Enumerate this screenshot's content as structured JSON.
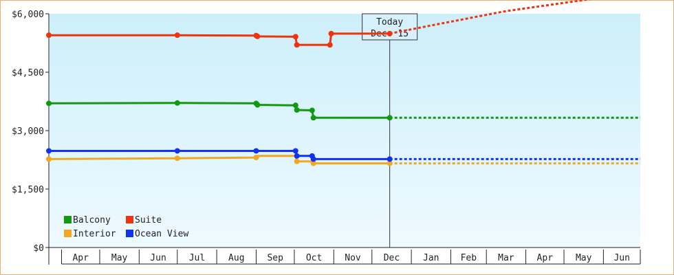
{
  "chart_data": {
    "type": "line",
    "title": "",
    "xlabel": "",
    "ylabel": "",
    "ylim": [
      0,
      6000
    ],
    "yticks": [
      0,
      1500,
      3000,
      4500,
      6000
    ],
    "ytick_labels": [
      "$0",
      "$1,500",
      "$3,000",
      "$4,500",
      "$6,000"
    ],
    "x_domain": [
      "2013-03-22",
      "2014-06-30"
    ],
    "months": [
      {
        "label": "Apr",
        "start": "2013-04-01",
        "end": "2013-05-01"
      },
      {
        "label": "May",
        "start": "2013-05-01",
        "end": "2013-06-01"
      },
      {
        "label": "Jun",
        "start": "2013-06-01",
        "end": "2013-07-01"
      },
      {
        "label": "Jul",
        "start": "2013-07-01",
        "end": "2013-08-01"
      },
      {
        "label": "Aug",
        "start": "2013-08-01",
        "end": "2013-09-01"
      },
      {
        "label": "Sep",
        "start": "2013-09-01",
        "end": "2013-10-01"
      },
      {
        "label": "Oct",
        "start": "2013-10-01",
        "end": "2013-11-01"
      },
      {
        "label": "Nov",
        "start": "2013-11-01",
        "end": "2013-12-01"
      },
      {
        "label": "Dec",
        "start": "2013-12-01",
        "end": "2014-01-01"
      },
      {
        "label": "Jan",
        "start": "2014-01-01",
        "end": "2014-02-01"
      },
      {
        "label": "Feb",
        "start": "2014-02-01",
        "end": "2014-03-01"
      },
      {
        "label": "Mar",
        "start": "2014-03-01",
        "end": "2014-04-01"
      },
      {
        "label": "Apr",
        "start": "2014-04-01",
        "end": "2014-05-01"
      },
      {
        "label": "May",
        "start": "2014-05-01",
        "end": "2014-06-01"
      },
      {
        "label": "Jun",
        "start": "2014-06-01",
        "end": "2014-06-30"
      }
    ],
    "today": {
      "date": "2013-12-15",
      "line1": "Today",
      "line2": "Dec. 15"
    },
    "legend_position": "bottom-left",
    "grid": false,
    "background": {
      "top": "#cdeffa",
      "bottom": "#eefaff"
    },
    "series": [
      {
        "name": "Balcony",
        "color": "#119911",
        "points": [
          [
            "2013-03-22",
            3700
          ],
          [
            "2013-07-01",
            3710
          ],
          [
            "2013-09-01",
            3700
          ],
          [
            "2013-09-02",
            3660
          ],
          [
            "2013-10-02",
            3650
          ],
          [
            "2013-10-03",
            3530
          ],
          [
            "2013-10-15",
            3520
          ],
          [
            "2013-10-16",
            3330
          ],
          [
            "2013-12-15",
            3330
          ]
        ],
        "markers": [
          [
            "2013-03-22",
            3700
          ],
          [
            "2013-07-01",
            3710
          ],
          [
            "2013-09-01",
            3700
          ],
          [
            "2013-09-02",
            3660
          ],
          [
            "2013-10-02",
            3650
          ],
          [
            "2013-10-03",
            3530
          ],
          [
            "2013-10-15",
            3520
          ],
          [
            "2013-10-16",
            3330
          ],
          [
            "2013-12-15",
            3330
          ]
        ],
        "projection": [
          [
            "2013-12-15",
            3330
          ],
          [
            "2014-06-30",
            3330
          ]
        ]
      },
      {
        "name": "Suite",
        "color": "#ee3311",
        "points": [
          [
            "2013-03-22",
            5450
          ],
          [
            "2013-07-01",
            5450
          ],
          [
            "2013-09-01",
            5440
          ],
          [
            "2013-09-02",
            5420
          ],
          [
            "2013-10-02",
            5410
          ],
          [
            "2013-10-03",
            5200
          ],
          [
            "2013-10-29",
            5200
          ],
          [
            "2013-10-30",
            5490
          ],
          [
            "2013-12-15",
            5490
          ]
        ],
        "markers": [
          [
            "2013-03-22",
            5450
          ],
          [
            "2013-07-01",
            5450
          ],
          [
            "2013-09-01",
            5440
          ],
          [
            "2013-09-02",
            5420
          ],
          [
            "2013-10-02",
            5410
          ],
          [
            "2013-10-03",
            5200
          ],
          [
            "2013-10-29",
            5200
          ],
          [
            "2013-10-30",
            5490
          ],
          [
            "2013-12-15",
            5490
          ]
        ],
        "projection": [
          [
            "2013-12-15",
            5490
          ],
          [
            "2014-01-15",
            5690
          ],
          [
            "2014-03-15",
            6060
          ],
          [
            "2014-06-30",
            6560
          ]
        ]
      },
      {
        "name": "Interior",
        "color": "#f3a620",
        "points": [
          [
            "2013-03-22",
            2270
          ],
          [
            "2013-07-01",
            2290
          ],
          [
            "2013-09-01",
            2310
          ],
          [
            "2013-09-02",
            2350
          ],
          [
            "2013-10-02",
            2350
          ],
          [
            "2013-10-03",
            2210
          ],
          [
            "2013-10-15",
            2210
          ],
          [
            "2013-10-16",
            2160
          ],
          [
            "2013-12-15",
            2160
          ]
        ],
        "markers": [
          [
            "2013-03-22",
            2270
          ],
          [
            "2013-07-01",
            2290
          ],
          [
            "2013-09-01",
            2310
          ],
          [
            "2013-10-03",
            2210
          ],
          [
            "2013-10-16",
            2160
          ],
          [
            "2013-12-15",
            2160
          ]
        ],
        "projection": [
          [
            "2013-12-15",
            2160
          ],
          [
            "2014-06-30",
            2160
          ]
        ]
      },
      {
        "name": "Ocean View",
        "color": "#1133ee",
        "points": [
          [
            "2013-03-22",
            2480
          ],
          [
            "2013-09-01",
            2480
          ],
          [
            "2013-10-02",
            2480
          ],
          [
            "2013-10-03",
            2350
          ],
          [
            "2013-10-15",
            2350
          ],
          [
            "2013-10-16",
            2270
          ],
          [
            "2013-12-15",
            2270
          ]
        ],
        "markers": [
          [
            "2013-03-22",
            2480
          ],
          [
            "2013-07-01",
            2480
          ],
          [
            "2013-09-01",
            2480
          ],
          [
            "2013-10-02",
            2480
          ],
          [
            "2013-10-03",
            2350
          ],
          [
            "2013-10-15",
            2350
          ],
          [
            "2013-10-16",
            2270
          ],
          [
            "2013-12-15",
            2270
          ]
        ],
        "projection": [
          [
            "2013-12-15",
            2270
          ],
          [
            "2014-06-30",
            2270
          ]
        ]
      }
    ]
  }
}
